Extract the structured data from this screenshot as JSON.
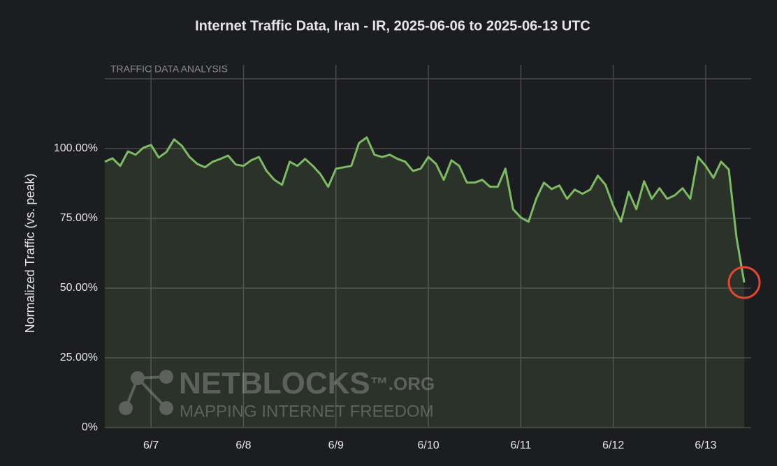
{
  "chart_data": {
    "type": "line",
    "title": "Internet Traffic Data, Iran - IR, 2025-06-06 to 2025-06-13 UTC",
    "ylabel": "Normalized Traffic (vs. peak)",
    "subtitle": "TRAFFIC DATA ANALYSIS",
    "watermark": {
      "brand": "NETBLOCKS",
      "suffix": "™.ORG",
      "tagline": "MAPPING INTERNET FREEDOM"
    },
    "categories": [
      null,
      null,
      null,
      null,
      null,
      null,
      "6/7",
      null,
      null,
      null,
      null,
      null,
      null,
      null,
      null,
      null,
      null,
      null,
      "6/8",
      null,
      null,
      null,
      null,
      null,
      null,
      null,
      null,
      null,
      null,
      null,
      "6/9",
      null,
      null,
      null,
      null,
      null,
      null,
      null,
      null,
      null,
      null,
      null,
      "6/10",
      null,
      null,
      null,
      null,
      null,
      null,
      null,
      null,
      null,
      null,
      null,
      "6/11",
      null,
      null,
      null,
      null,
      null,
      null,
      null,
      null,
      null,
      null,
      null,
      "6/12",
      null,
      null,
      null,
      null,
      null,
      null,
      null,
      null,
      null,
      null,
      null,
      "6/13",
      null,
      null,
      null,
      null,
      null
    ],
    "series": [
      {
        "name": "Iran - IR",
        "color": "#7dbb63",
        "values": [
          95.3,
          96.5,
          93.8,
          99,
          97.8,
          100.3,
          101.3,
          96.8,
          98.8,
          103.3,
          101,
          97,
          94.5,
          93.3,
          95.3,
          96.3,
          97.5,
          94.3,
          93.8,
          95.8,
          97,
          92,
          88.8,
          87,
          95.3,
          93.8,
          96.3,
          93.8,
          90.8,
          86.3,
          92.8,
          93.3,
          93.8,
          102,
          104,
          97.8,
          97,
          97.8,
          96.3,
          95.3,
          92,
          92.8,
          97,
          94.5,
          88.8,
          95.8,
          93.8,
          87.8,
          87.8,
          88.8,
          86.3,
          86.3,
          92.8,
          78.3,
          75.3,
          73.8,
          82,
          87.8,
          85.5,
          86.8,
          82,
          85.3,
          83.8,
          85.3,
          90.3,
          87,
          79.5,
          73.8,
          84.5,
          78.3,
          88.3,
          82,
          85.8,
          82,
          83.3,
          85.8,
          82,
          97,
          93.8,
          89.5,
          95.3,
          92.5,
          68,
          52
        ]
      }
    ],
    "ylim": [
      0,
      125
    ],
    "yticks": [
      {
        "value": 0,
        "label": "0%"
      },
      {
        "value": 25,
        "label": "25.00%"
      },
      {
        "value": 50,
        "label": "50.00%"
      },
      {
        "value": 75,
        "label": "75.00%"
      },
      {
        "value": 100,
        "label": "100.00%"
      }
    ],
    "grid": true
  }
}
